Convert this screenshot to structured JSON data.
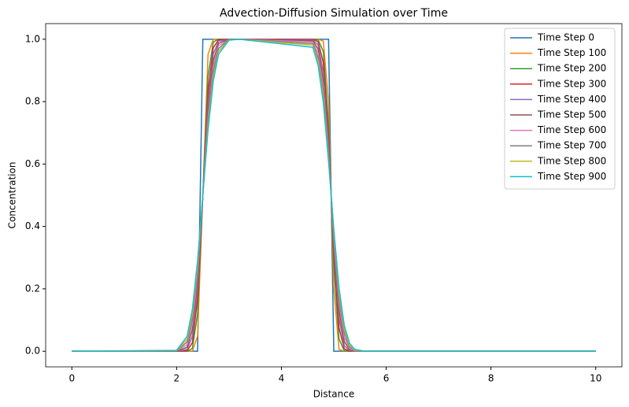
{
  "chart_data": {
    "type": "line",
    "title": "Advection-Diffusion Simulation over Time",
    "xlabel": "Distance",
    "ylabel": "Concentration",
    "x": [
      0,
      2.0,
      2.2,
      2.3,
      2.4,
      2.5,
      2.6,
      2.7,
      2.8,
      3.0,
      3.2,
      4.6,
      4.7,
      4.8,
      4.9,
      5.0,
      5.1,
      5.2,
      5.3,
      5.4,
      5.6,
      5.8,
      10
    ],
    "xlim": [
      -0.5,
      10.5
    ],
    "xticks": [
      0,
      2,
      4,
      6,
      8,
      10
    ],
    "ylim": [
      -0.05,
      1.05
    ],
    "yticks": [
      {
        "value": 0,
        "label": "0.0"
      },
      0.2,
      0.4,
      0.6,
      0.8,
      {
        "value": 1,
        "label": "1.0"
      }
    ],
    "grid": false,
    "legend": "upper right",
    "series": [
      {
        "name": "Time Step 0",
        "color": "#1f77b4",
        "values": [
          0,
          0,
          0,
          0,
          0,
          1,
          1,
          1,
          1,
          1,
          1,
          1,
          1,
          1,
          1,
          0,
          0,
          0,
          0,
          0,
          0,
          0,
          0
        ]
      },
      {
        "name": "Time Step 100",
        "color": "#ff7f0e",
        "values": [
          0,
          0,
          0,
          0,
          0.048,
          0.5,
          0.952,
          1,
          1,
          1,
          1,
          1,
          1,
          0.994,
          0.797,
          0.203,
          0.006,
          0,
          0,
          0,
          0,
          0,
          0
        ]
      },
      {
        "name": "Time Step 200",
        "color": "#2ca02c",
        "values": [
          0,
          0,
          0,
          0.009,
          0.12,
          0.5,
          0.88,
          0.991,
          1,
          1,
          1,
          1,
          0.998,
          0.961,
          0.722,
          0.278,
          0.039,
          0.002,
          0,
          0,
          0,
          0,
          0
        ]
      },
      {
        "name": "Time Step 300",
        "color": "#d62728",
        "values": [
          0,
          0,
          0.002,
          0.027,
          0.168,
          0.5,
          0.832,
          0.973,
          0.998,
          1,
          1,
          1,
          0.992,
          0.925,
          0.685,
          0.315,
          0.075,
          0.008,
          0,
          0,
          0,
          0,
          0
        ]
      },
      {
        "name": "Time Step 400",
        "color": "#9467bd",
        "values": [
          0,
          0,
          0.006,
          0.048,
          0.203,
          0.5,
          0.797,
          0.952,
          0.994,
          1,
          1,
          0.998,
          0.982,
          0.894,
          0.661,
          0.339,
          0.106,
          0.018,
          0.002,
          0,
          0,
          0,
          0
        ]
      },
      {
        "name": "Time Step 500",
        "color": "#8c564b",
        "values": [
          0,
          0,
          0.013,
          0.069,
          0.228,
          0.5,
          0.772,
          0.931,
          0.987,
          1,
          1,
          0.995,
          0.969,
          0.868,
          0.645,
          0.355,
          0.132,
          0.031,
          0.005,
          0.001,
          0,
          0,
          0
        ]
      },
      {
        "name": "Time Step 600",
        "color": "#e377c2",
        "values": [
          0,
          0.001,
          0.021,
          0.088,
          0.249,
          0.5,
          0.751,
          0.912,
          0.979,
          0.999,
          1,
          0.991,
          0.955,
          0.846,
          0.633,
          0.367,
          0.154,
          0.045,
          0.009,
          0.001,
          0,
          0,
          0
        ]
      },
      {
        "name": "Time Step 700",
        "color": "#7f7f7f",
        "values": [
          0,
          0.001,
          0.03,
          0.104,
          0.265,
          0.5,
          0.735,
          0.896,
          0.97,
          0.999,
          1,
          0.986,
          0.941,
          0.827,
          0.623,
          0.377,
          0.173,
          0.059,
          0.014,
          0.002,
          0,
          0,
          0
        ]
      },
      {
        "name": "Time Step 800",
        "color": "#bcbd22",
        "values": [
          0,
          0.002,
          0.039,
          0.12,
          0.278,
          0.5,
          0.722,
          0.88,
          0.961,
          0.998,
          1,
          0.981,
          0.929,
          0.811,
          0.616,
          0.384,
          0.189,
          0.071,
          0.019,
          0.004,
          0,
          0,
          0
        ]
      },
      {
        "name": "Time Step 900",
        "color": "#17becf",
        "values": [
          0,
          0.003,
          0.048,
          0.134,
          0.29,
          0.5,
          0.71,
          0.866,
          0.952,
          0.997,
          1,
          0.974,
          0.917,
          0.797,
          0.609,
          0.391,
          0.203,
          0.083,
          0.026,
          0.006,
          0,
          0,
          0
        ]
      }
    ]
  }
}
